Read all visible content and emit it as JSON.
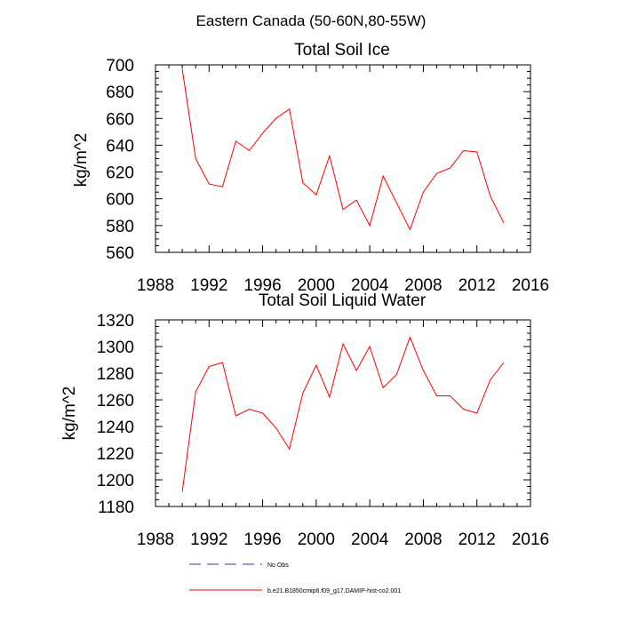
{
  "figure": {
    "title": "Eastern Canada (50-60N,80-55W)",
    "legend": [
      {
        "label": "No Obs",
        "color": "#3333aa",
        "style": "dashed"
      },
      {
        "label": "b.e21.B1850cmip6.f09_g17.DAMIP-hist-co2.001",
        "color": "#ff0000",
        "style": "solid"
      }
    ]
  },
  "chart_data": [
    {
      "type": "line",
      "title": "Total Soil Ice",
      "ylabel": "kg/m^2",
      "xlabel": "",
      "xlim": [
        1988,
        2016
      ],
      "ylim": [
        560,
        700
      ],
      "x_ticks": [
        1988,
        1992,
        1996,
        2000,
        2004,
        2008,
        2012,
        2016
      ],
      "y_ticks": [
        560,
        580,
        600,
        620,
        640,
        660,
        680,
        700
      ],
      "x_minor": 1,
      "y_minor": 5,
      "series": [
        {
          "color": "#ff0000",
          "x": [
            1990,
            1991,
            1992,
            1993,
            1994,
            1995,
            1996,
            1997,
            1998,
            1999,
            2000,
            2001,
            2002,
            2003,
            2004,
            2005,
            2006,
            2007,
            2008,
            2009,
            2010,
            2011,
            2012,
            2013,
            2014
          ],
          "values": [
            697,
            630,
            611,
            609,
            643,
            636,
            649,
            660,
            667,
            612,
            603,
            632,
            592,
            599,
            580,
            617,
            597,
            577,
            605,
            619,
            623,
            636,
            635,
            602,
            582
          ]
        }
      ]
    },
    {
      "type": "line",
      "title": "Total Soil Liquid Water",
      "ylabel": "kg/m^2",
      "xlabel": "",
      "xlim": [
        1988,
        2016
      ],
      "ylim": [
        1180,
        1320
      ],
      "x_ticks": [
        1988,
        1992,
        1996,
        2000,
        2004,
        2008,
        2012,
        2016
      ],
      "y_ticks": [
        1180,
        1200,
        1220,
        1240,
        1260,
        1280,
        1300,
        1320
      ],
      "x_minor": 1,
      "y_minor": 5,
      "series": [
        {
          "color": "#ff0000",
          "x": [
            1990,
            1991,
            1992,
            1993,
            1994,
            1995,
            1996,
            1997,
            1998,
            1999,
            2000,
            2001,
            2002,
            2003,
            2004,
            2005,
            2006,
            2007,
            2008,
            2009,
            2010,
            2011,
            2012,
            2013,
            2014
          ],
          "values": [
            1191,
            1266,
            1285,
            1288,
            1248,
            1253,
            1250,
            1239,
            1223,
            1265,
            1286,
            1262,
            1302,
            1282,
            1300,
            1269,
            1279,
            1307,
            1282,
            1263,
            1263,
            1253,
            1250,
            1275,
            1288
          ]
        }
      ]
    }
  ]
}
